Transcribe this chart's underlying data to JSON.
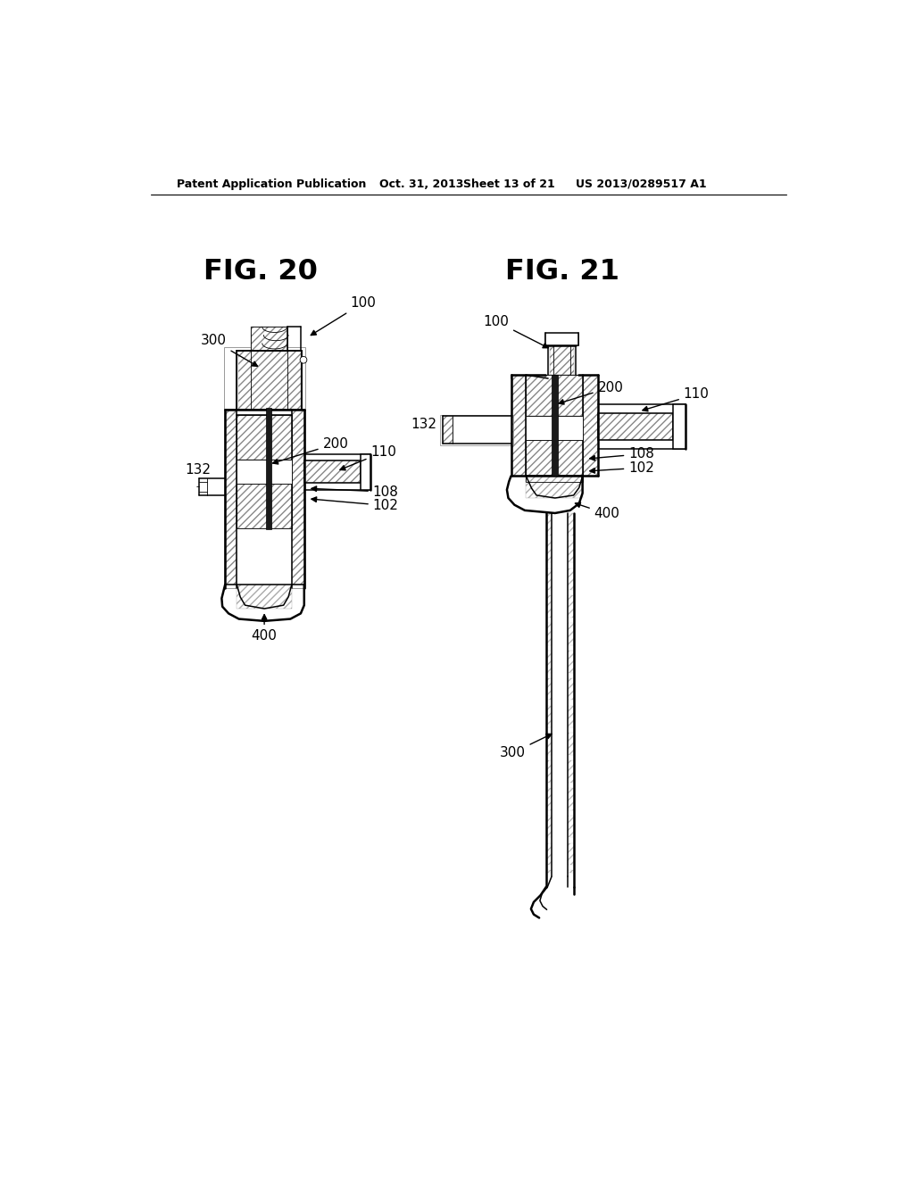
{
  "background_color": "#ffffff",
  "header_text": "Patent Application Publication",
  "header_date": "Oct. 31, 2013",
  "header_sheet": "Sheet 13 of 21",
  "header_patent": "US 2013/0289517 A1",
  "fig20_title": "FIG. 20",
  "fig21_title": "FIG. 21"
}
